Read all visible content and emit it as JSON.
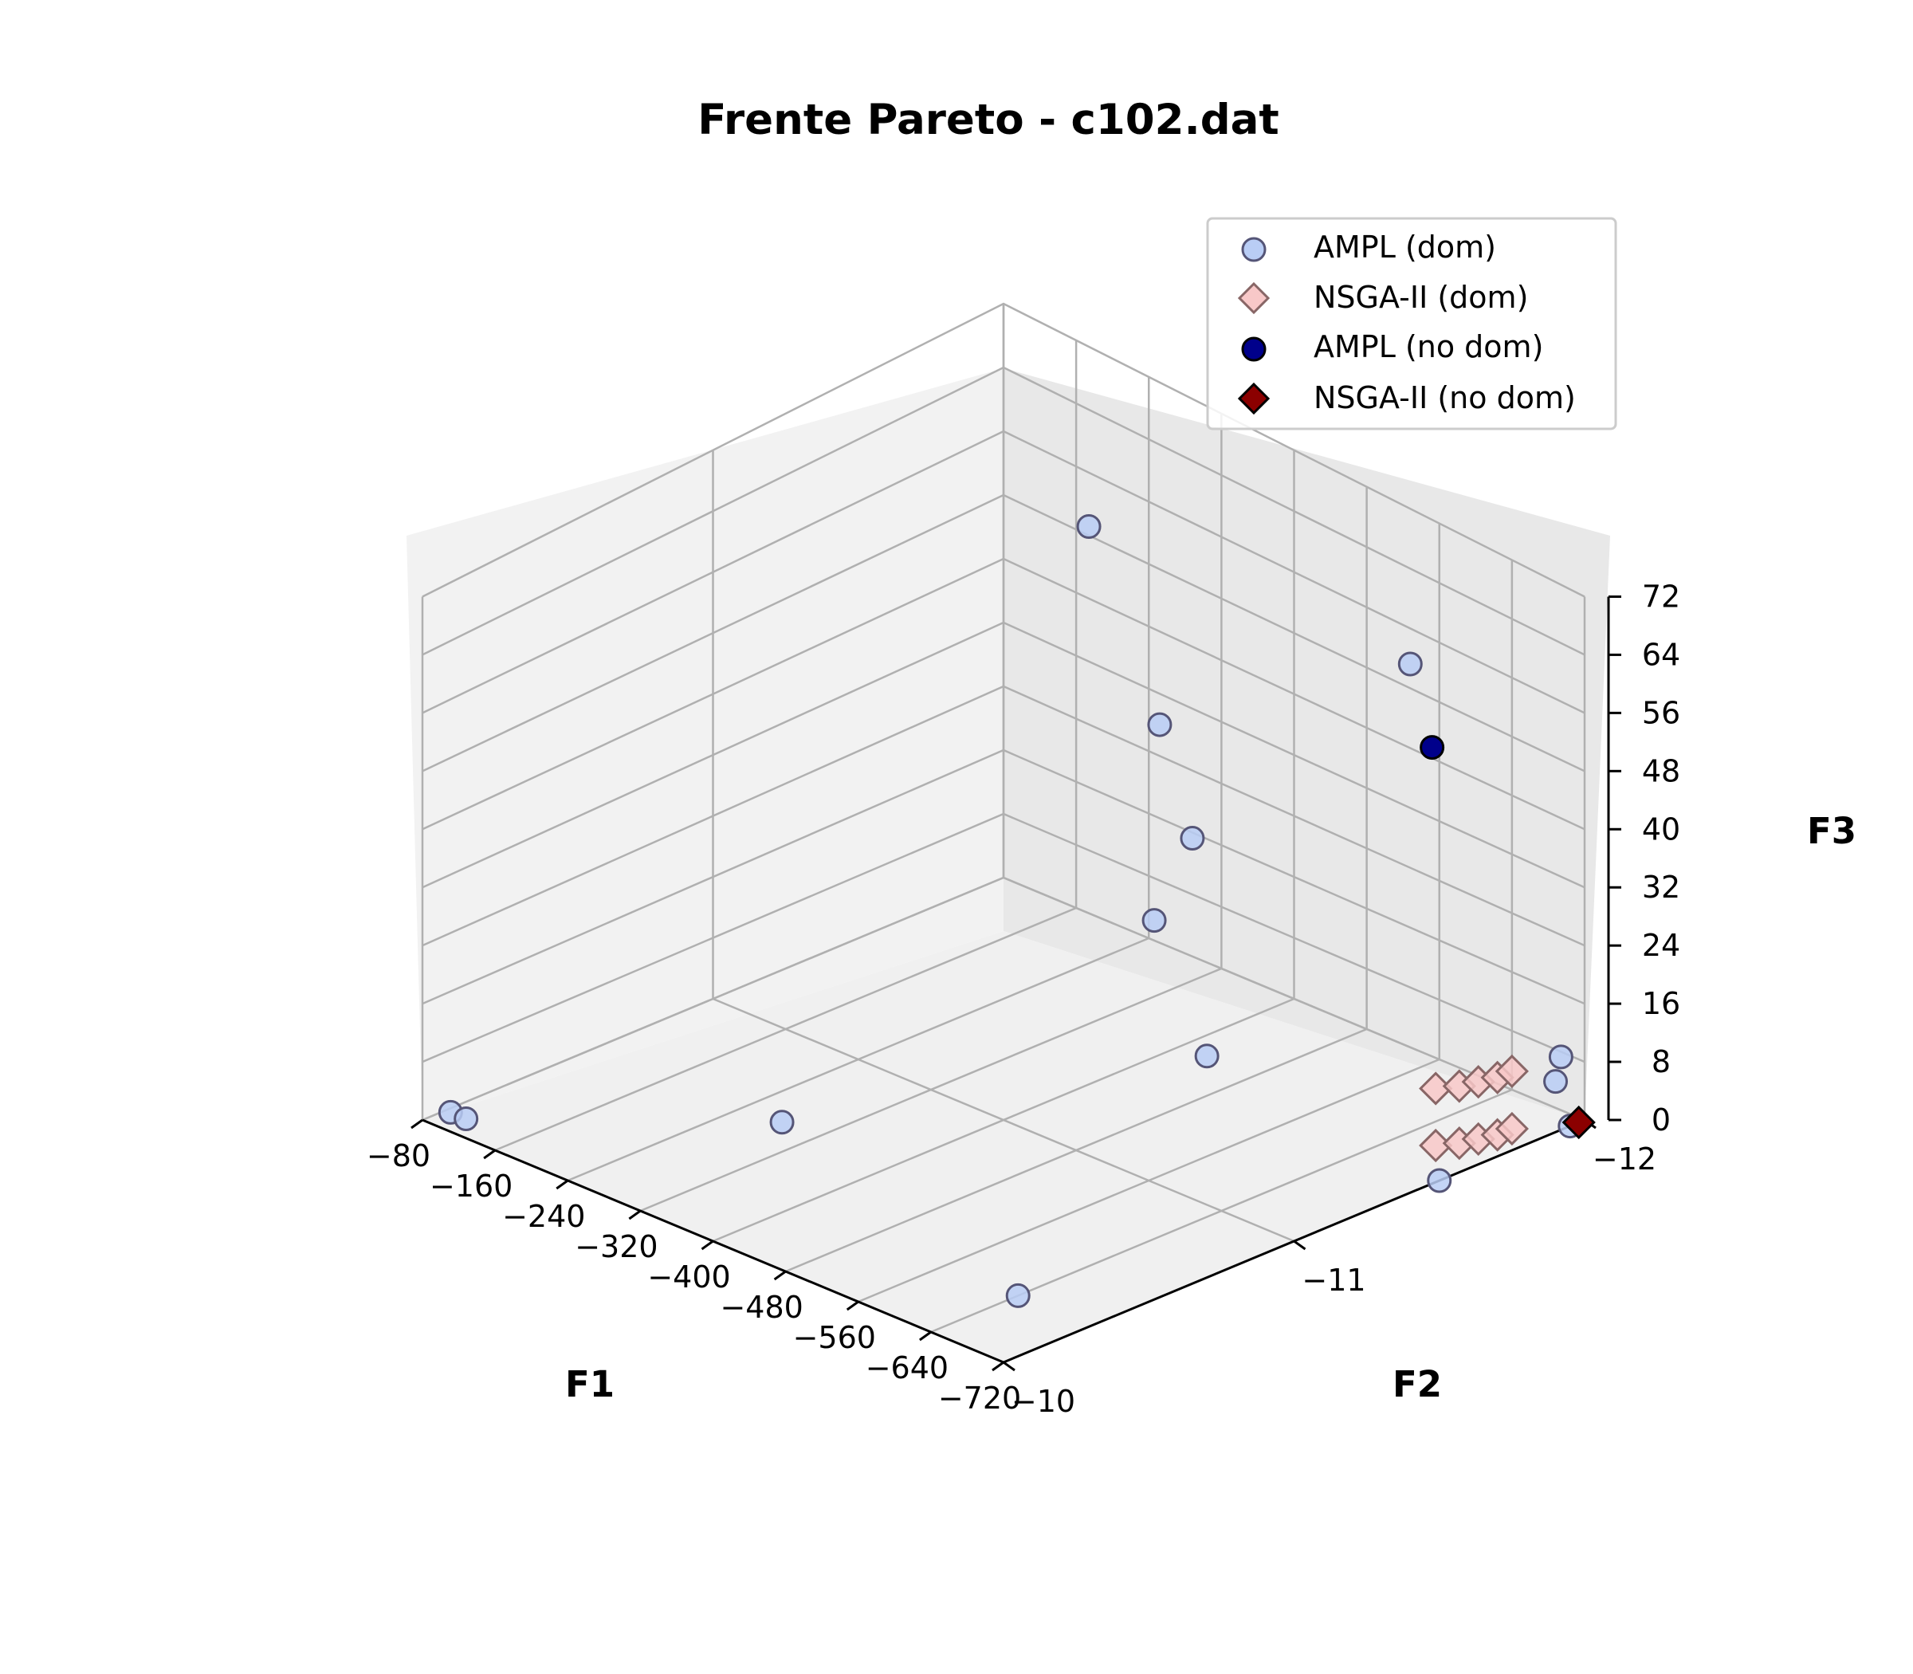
{
  "chart_data": {
    "type": "scatter3d",
    "title": "Frente Pareto - c102.dat",
    "xlabel": "F1",
    "ylabel": "F2",
    "zlabel": "F3",
    "xlim": [
      -80,
      -720
    ],
    "ylim": [
      -10,
      -12
    ],
    "zlim": [
      0,
      72
    ],
    "x_ticks": [
      "−80",
      "−160",
      "−240",
      "−320",
      "−400",
      "−480",
      "−560",
      "−640",
      "−720"
    ],
    "y_ticks": [
      "−10",
      "−11",
      "−12"
    ],
    "z_ticks": [
      "0",
      "8",
      "16",
      "24",
      "32",
      "40",
      "48",
      "56",
      "64",
      "72"
    ],
    "grid": true,
    "legend_position": "top-right",
    "colors": {
      "ampl_dom": "#b9cdf5",
      "nsga_dom": "#f8c8c8",
      "ampl_nodom": "#00008b",
      "nsga_nodom": "#8b0000"
    },
    "series": [
      {
        "name": "AMPL (dom)",
        "marker": "circle",
        "points": [
          {
            "x": -95,
            "y": -10.05,
            "z": 1
          },
          {
            "x": -112,
            "y": -10.05,
            "z": 1
          },
          {
            "x": -300,
            "y": -10.55,
            "z": 2
          },
          {
            "x": -560,
            "y": -11.2,
            "z": 14
          },
          {
            "x": -470,
            "y": -11.3,
            "z": 26
          },
          {
            "x": -480,
            "y": -11.4,
            "z": 36
          },
          {
            "x": -380,
            "y": -11.6,
            "z": 42
          },
          {
            "x": -560,
            "y": -11.9,
            "z": 55
          },
          {
            "x": -710,
            "y": -11.95,
            "z": 9
          },
          {
            "x": -720,
            "y": -11.9,
            "z": 7
          },
          {
            "x": -640,
            "y": -10.3,
            "z": 0
          },
          {
            "x": -720,
            "y": -11.5,
            "z": 0
          },
          {
            "x": -720,
            "y": -11.95,
            "z": 0
          },
          {
            "x": -270,
            "y": -11.7,
            "z": 60
          }
        ]
      },
      {
        "name": "NSGA-II (dom)",
        "marker": "diamond",
        "points": [
          {
            "x": -700,
            "y": -11.55,
            "z": 11
          },
          {
            "x": -710,
            "y": -11.6,
            "z": 11
          },
          {
            "x": -715,
            "y": -11.65,
            "z": 11
          },
          {
            "x": -720,
            "y": -11.7,
            "z": 11
          },
          {
            "x": -720,
            "y": -11.75,
            "z": 11
          },
          {
            "x": -700,
            "y": -11.55,
            "z": 3
          },
          {
            "x": -710,
            "y": -11.6,
            "z": 3
          },
          {
            "x": -715,
            "y": -11.65,
            "z": 3
          },
          {
            "x": -720,
            "y": -11.7,
            "z": 3
          },
          {
            "x": -720,
            "y": -11.75,
            "z": 3
          }
        ]
      },
      {
        "name": "AMPL (no dom)",
        "marker": "circle",
        "points": [
          {
            "x": -600,
            "y": -11.85,
            "z": 47
          }
        ]
      },
      {
        "name": "NSGA-II (no dom)",
        "marker": "diamond",
        "points": [
          {
            "x": -720,
            "y": -11.98,
            "z": 0
          }
        ]
      }
    ]
  }
}
